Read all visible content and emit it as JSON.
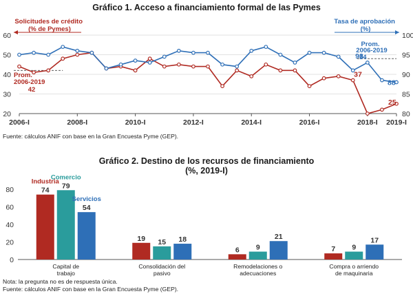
{
  "colors": {
    "red": "#b02a22",
    "blue": "#2e6fb7",
    "teal": "#2a9c9c",
    "grid": "#d9d9d9",
    "axis": "#555555"
  },
  "chart_data": [
    {
      "type": "line",
      "title": "Gráfico 1. Acceso a financiamiento formal de las Pymes",
      "x_ticks": [
        "2006-I",
        "2008-I",
        "2010-I",
        "2012-I",
        "2014-I",
        "2016-I",
        "2018-I",
        "2019-I"
      ],
      "x_tick_positions": [
        0,
        4,
        8,
        12,
        16,
        20,
        24,
        26
      ],
      "left_axis": {
        "label": "Solicitudes de crédito (% de Pymes)",
        "ylim": [
          20,
          60
        ],
        "ticks": [
          "20",
          "30",
          "40",
          "50",
          "60"
        ]
      },
      "right_axis": {
        "label": "Tasa de aprobación (%)",
        "ylim": [
          80,
          100
        ],
        "ticks": [
          "80",
          "85",
          "90",
          "95",
          "100"
        ]
      },
      "series": [
        {
          "name": "Solicitudes de crédito (% de Pymes)",
          "axis": "left",
          "x": [
            0,
            1,
            2,
            3,
            4,
            5,
            6,
            7,
            8,
            9,
            10,
            11,
            12,
            13,
            14,
            15,
            16,
            17,
            18,
            19,
            20,
            21,
            22,
            23,
            24,
            25,
            26
          ],
          "values": [
            44,
            41,
            42,
            48,
            50,
            51,
            43,
            44,
            42,
            48,
            44,
            45,
            44,
            44,
            34,
            42,
            39,
            45,
            42,
            42,
            34,
            38,
            39,
            37,
            20,
            22,
            25
          ]
        },
        {
          "name": "Tasa de aprobación (%)",
          "axis": "right",
          "x": [
            0,
            1,
            2,
            3,
            4,
            5,
            6,
            7,
            8,
            9,
            10,
            11,
            12,
            13,
            14,
            15,
            16,
            17,
            18,
            19,
            20,
            21,
            22,
            23,
            24,
            25,
            26
          ],
          "values": [
            95,
            95.5,
            95,
            97,
            96,
            95.5,
            91.5,
            92.5,
            93.5,
            93,
            94.5,
            96,
            95.5,
            95.5,
            92.5,
            92,
            96,
            97,
            95,
            93,
            95.5,
            95.5,
            94.5,
            91,
            93,
            88.5,
            88
          ]
        }
      ],
      "annotations": {
        "left_avg_label": "Prom. 2006-2019",
        "left_avg_value": "42",
        "left_avg": 42,
        "right_avg_label": "Prom. 2006-2019",
        "right_avg_value": "94",
        "right_avg": 94,
        "last_red": "37",
        "end_red": "25",
        "last_blue": "93",
        "end_blue": "88"
      },
      "source": "Fuente: cálculos ANIF con base en la Gran Encuesta Pyme (GEP)."
    },
    {
      "type": "bar",
      "title": "Gráfico 2. Destino de los recursos de financiamiento",
      "subtitle": "(%, 2019-I)",
      "categories": [
        "Capital de trabajo",
        "Consolidación del pasivo",
        "Remodelaciones o adecuaciones",
        "Compra o arriendo de maquinaria"
      ],
      "category_lines": [
        [
          "Capital de",
          "trabajo"
        ],
        [
          "Consolidación del",
          "pasivo"
        ],
        [
          "Remodelaciones o",
          "adecuaciones"
        ],
        [
          "Compra o arriendo",
          "de maquinaria"
        ]
      ],
      "ylim": [
        0,
        80
      ],
      "y_ticks": [
        "0",
        "20",
        "40",
        "60",
        "80"
      ],
      "series": [
        {
          "name": "Industria",
          "color": "#b02a22",
          "values": [
            74,
            19,
            6,
            7
          ]
        },
        {
          "name": "Comercio",
          "color": "#2a9c9c",
          "values": [
            79,
            15,
            9,
            9
          ]
        },
        {
          "name": "Servicios",
          "color": "#2e6fb7",
          "values": [
            54,
            18,
            21,
            17
          ]
        }
      ],
      "note": "Nota: la pregunta no es de respuesta única.",
      "source": "Fuente: cálculos ANIF con base en la Gran Encuesta Pyme (GEP)."
    }
  ]
}
